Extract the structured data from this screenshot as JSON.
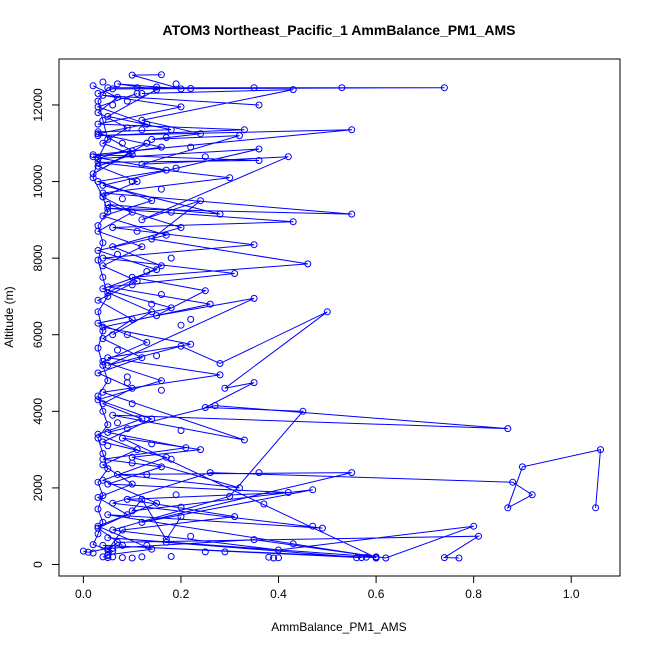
{
  "chart_data": {
    "type": "line",
    "title": "ATOM3 Northeast_Pacific_1 AmmBalance_PM1_AMS",
    "xlabel": "AmmBalance_PM1_AMS",
    "ylabel": "Altitude (m)",
    "xlim": [
      -0.05,
      1.1
    ],
    "ylim": [
      -300,
      13200
    ],
    "x_ticks": [
      0.0,
      0.2,
      0.4,
      0.6,
      0.8,
      1.0
    ],
    "x_tick_labels": [
      "0.0",
      "0.2",
      "0.4",
      "0.6",
      "0.8",
      "1.0"
    ],
    "y_ticks": [
      0,
      2000,
      4000,
      6000,
      8000,
      10000,
      12000
    ],
    "y_tick_labels": [
      "0",
      "2000",
      "4000",
      "6000",
      "8000",
      "10000",
      "12000"
    ],
    "grid": false,
    "color": "#0000ff",
    "marker": "open-circle",
    "series": [
      {
        "values": [
          [
            0.04,
            200
          ],
          [
            0.05,
            230
          ],
          [
            0.06,
            350
          ],
          [
            0.02,
            520
          ],
          [
            0.03,
            800
          ],
          [
            0.04,
            1100
          ],
          [
            0.03,
            1450
          ],
          [
            0.04,
            1800
          ],
          [
            0.03,
            2150
          ],
          [
            0.05,
            2500
          ],
          [
            0.04,
            2900
          ],
          [
            0.03,
            3300
          ],
          [
            0.05,
            3650
          ],
          [
            0.04,
            4000
          ],
          [
            0.03,
            4400
          ],
          [
            0.05,
            4800
          ],
          [
            0.04,
            5200
          ],
          [
            0.03,
            5650
          ],
          [
            0.04,
            6100
          ],
          [
            0.03,
            6600
          ],
          [
            0.05,
            7000
          ],
          [
            0.04,
            7500
          ],
          [
            0.03,
            7950
          ],
          [
            0.04,
            8400
          ],
          [
            0.03,
            8850
          ],
          [
            0.05,
            9200
          ],
          [
            0.04,
            9600
          ],
          [
            0.02,
            10100
          ],
          [
            0.03,
            10600
          ],
          [
            0.05,
            11100
          ],
          [
            0.04,
            11600
          ],
          [
            0.03,
            12100
          ],
          [
            0.05,
            12450
          ],
          [
            0.35,
            12450
          ],
          [
            0.53,
            12450
          ],
          [
            0.74,
            12450
          ],
          [
            0.06,
            12420
          ],
          [
            0.03,
            12300
          ]
        ]
      },
      {
        "values": [
          [
            0.77,
            170
          ],
          [
            0.74,
            180
          ],
          [
            0.81,
            740
          ],
          [
            0.07,
            580
          ],
          [
            0.05,
            380
          ],
          [
            0.08,
            900
          ],
          [
            0.31,
            1250
          ],
          [
            0.09,
            1700
          ],
          [
            0.42,
            1880
          ],
          [
            0.05,
            2100
          ],
          [
            0.16,
            2550
          ],
          [
            0.04,
            2750
          ],
          [
            0.21,
            3050
          ],
          [
            0.05,
            3450
          ],
          [
            0.27,
            4150
          ],
          [
            0.87,
            3550
          ],
          [
            0.06,
            3900
          ],
          [
            0.33,
            3250
          ],
          [
            0.04,
            4500
          ],
          [
            0.28,
            4950
          ],
          [
            0.05,
            5400
          ],
          [
            0.22,
            5750
          ],
          [
            0.04,
            6200
          ],
          [
            0.26,
            6800
          ],
          [
            0.05,
            7250
          ],
          [
            0.31,
            7600
          ],
          [
            0.04,
            8000
          ],
          [
            0.35,
            8350
          ],
          [
            0.06,
            8800
          ],
          [
            0.43,
            8950
          ],
          [
            0.05,
            9300
          ],
          [
            0.55,
            9150
          ],
          [
            0.04,
            9700
          ],
          [
            0.3,
            10100
          ],
          [
            0.03,
            10500
          ],
          [
            0.36,
            10550
          ],
          [
            0.02,
            10700
          ],
          [
            0.55,
            11350
          ],
          [
            0.03,
            11200
          ],
          [
            0.33,
            11350
          ],
          [
            0.03,
            11500
          ],
          [
            0.2,
            11950
          ],
          [
            0.04,
            12250
          ],
          [
            0.36,
            12000
          ]
        ]
      },
      {
        "values": [
          [
            1.05,
            1480
          ],
          [
            1.06,
            3000
          ],
          [
            0.9,
            2550
          ],
          [
            0.87,
            1480
          ],
          [
            0.92,
            1820
          ],
          [
            0.88,
            2150
          ],
          [
            0.26,
            2400
          ],
          [
            0.06,
            1600
          ],
          [
            0.49,
            950
          ],
          [
            0.05,
            1300
          ],
          [
            0.6,
            200
          ],
          [
            0.05,
            700
          ],
          [
            0.57,
            180
          ],
          [
            0.04,
            500
          ],
          [
            0.6,
            180
          ],
          [
            0.08,
            3300
          ],
          [
            0.24,
            3000
          ],
          [
            0.1,
            2800
          ],
          [
            0.32,
            2000
          ],
          [
            0.07,
            2350
          ],
          [
            0.55,
            2400
          ],
          [
            0.12,
            1100
          ],
          [
            0.47,
            1950
          ],
          [
            0.1,
            1400
          ],
          [
            0.12,
            1700
          ],
          [
            0.17,
            650
          ],
          [
            0.2,
            1250
          ]
        ]
      },
      {
        "values": [
          [
            0.06,
            6000
          ],
          [
            0.14,
            6600
          ],
          [
            0.05,
            7100
          ],
          [
            0.16,
            7800
          ],
          [
            0.06,
            8300
          ],
          [
            0.2,
            8800
          ],
          [
            0.05,
            9400
          ],
          [
            0.28,
            9150
          ],
          [
            0.04,
            9900
          ],
          [
            0.36,
            10850
          ],
          [
            0.03,
            10600
          ],
          [
            0.13,
            11000
          ],
          [
            0.02,
            10200
          ],
          [
            0.1,
            10800
          ],
          [
            0.03,
            11300
          ],
          [
            0.18,
            11350
          ],
          [
            0.05,
            11700
          ],
          [
            0.15,
            12400
          ],
          [
            0.07,
            12550
          ],
          [
            0.2,
            12420
          ],
          [
            0.1,
            12780
          ],
          [
            0.16,
            12790
          ]
        ]
      },
      {
        "values": [
          [
            0.08,
            500
          ],
          [
            0.03,
            950
          ],
          [
            0.09,
            1300
          ],
          [
            0.03,
            1750
          ],
          [
            0.1,
            2100
          ],
          [
            0.04,
            2600
          ],
          [
            0.11,
            3000
          ],
          [
            0.03,
            3400
          ],
          [
            0.12,
            3800
          ],
          [
            0.04,
            4200
          ],
          [
            0.1,
            4600
          ],
          [
            0.03,
            5000
          ],
          [
            0.12,
            5400
          ],
          [
            0.04,
            5900
          ],
          [
            0.1,
            6400
          ],
          [
            0.03,
            6900
          ],
          [
            0.11,
            7400
          ],
          [
            0.04,
            7800
          ],
          [
            0.12,
            8300
          ],
          [
            0.03,
            8700
          ],
          [
            0.1,
            9200
          ],
          [
            0.04,
            9600
          ],
          [
            0.11,
            10000
          ],
          [
            0.03,
            10400
          ],
          [
            0.1,
            10700
          ],
          [
            0.04,
            11000
          ],
          [
            0.09,
            11400
          ],
          [
            0.03,
            11800
          ],
          [
            0.07,
            12200
          ],
          [
            0.02,
            12500
          ]
        ]
      },
      {
        "values": [
          [
            0.0,
            350
          ],
          [
            0.01,
            320
          ],
          [
            0.05,
            420
          ],
          [
            0.35,
            650
          ],
          [
            0.62,
            170
          ],
          [
            0.8,
            1000
          ],
          [
            0.4,
            380
          ],
          [
            0.06,
            900
          ],
          [
            0.3,
            1780
          ],
          [
            0.45,
            4000
          ],
          [
            0.25,
            4100
          ],
          [
            0.35,
            4750
          ],
          [
            0.29,
            4600
          ],
          [
            0.5,
            6600
          ],
          [
            0.28,
            5250
          ],
          [
            0.2,
            5700
          ],
          [
            0.05,
            5200
          ],
          [
            0.35,
            6950
          ],
          [
            0.15,
            6500
          ],
          [
            0.25,
            7150
          ],
          [
            0.1,
            7500
          ],
          [
            0.46,
            7850
          ],
          [
            0.14,
            8500
          ],
          [
            0.24,
            9500
          ],
          [
            0.12,
            9000
          ],
          [
            0.42,
            10650
          ],
          [
            0.12,
            10450
          ],
          [
            0.32,
            11200
          ],
          [
            0.14,
            11100
          ],
          [
            0.24,
            11250
          ],
          [
            0.12,
            11600
          ],
          [
            0.43,
            12400
          ],
          [
            0.12,
            12300
          ]
        ]
      },
      {
        "values": [
          [
            0.05,
            250
          ],
          [
            0.14,
            400
          ],
          [
            0.03,
            1000
          ],
          [
            0.15,
            1600
          ],
          [
            0.04,
            2200
          ],
          [
            0.17,
            2800
          ],
          [
            0.04,
            3200
          ],
          [
            0.14,
            3800
          ],
          [
            0.03,
            4300
          ],
          [
            0.16,
            4800
          ],
          [
            0.04,
            5300
          ],
          [
            0.13,
            5800
          ],
          [
            0.03,
            6300
          ],
          [
            0.18,
            6700
          ],
          [
            0.04,
            7200
          ],
          [
            0.15,
            7700
          ],
          [
            0.03,
            8200
          ],
          [
            0.17,
            8600
          ],
          [
            0.04,
            9100
          ],
          [
            0.14,
            9500
          ],
          [
            0.03,
            10000
          ],
          [
            0.17,
            10300
          ],
          [
            0.02,
            10650
          ],
          [
            0.16,
            10900
          ],
          [
            0.03,
            11250
          ],
          [
            0.13,
            11500
          ],
          [
            0.03,
            11950
          ],
          [
            0.11,
            12300
          ]
        ]
      }
    ],
    "scatter_points": [
      [
        0.05,
        180
      ],
      [
        0.06,
        200
      ],
      [
        0.08,
        180
      ],
      [
        0.1,
        170
      ],
      [
        0.12,
        200
      ],
      [
        0.18,
        210
      ],
      [
        0.25,
        330
      ],
      [
        0.29,
        330
      ],
      [
        0.38,
        190
      ],
      [
        0.39,
        170
      ],
      [
        0.4,
        175
      ],
      [
        0.56,
        175
      ],
      [
        0.58,
        190
      ],
      [
        0.6,
        170
      ],
      [
        0.02,
        300
      ],
      [
        0.06,
        420
      ],
      [
        0.13,
        500
      ],
      [
        0.17,
        580
      ],
      [
        0.22,
        740
      ],
      [
        0.43,
        540
      ],
      [
        0.47,
        1000
      ],
      [
        0.2,
        1500
      ],
      [
        0.37,
        1580
      ],
      [
        0.19,
        1820
      ],
      [
        0.13,
        2350
      ],
      [
        0.18,
        2750
      ],
      [
        0.36,
        2400
      ],
      [
        0.09,
        3550
      ],
      [
        0.05,
        3100
      ],
      [
        0.14,
        3150
      ],
      [
        0.2,
        3500
      ],
      [
        0.1,
        4200
      ],
      [
        0.16,
        4550
      ],
      [
        0.09,
        4900
      ],
      [
        0.15,
        5450
      ],
      [
        0.09,
        6000
      ],
      [
        0.2,
        6250
      ],
      [
        0.16,
        7050
      ],
      [
        0.22,
        6400
      ],
      [
        0.13,
        7650
      ],
      [
        0.18,
        8000
      ],
      [
        0.11,
        8700
      ],
      [
        0.08,
        9550
      ],
      [
        0.16,
        9800
      ],
      [
        0.19,
        10350
      ],
      [
        0.1,
        10000
      ],
      [
        0.25,
        10650
      ],
      [
        0.13,
        11000
      ],
      [
        0.06,
        12000
      ],
      [
        0.09,
        12100
      ],
      [
        0.04,
        12600
      ],
      [
        0.11,
        12450
      ],
      [
        0.15,
        12470
      ],
      [
        0.19,
        12550
      ],
      [
        0.22,
        12430
      ],
      [
        0.08,
        11000
      ],
      [
        0.12,
        11350
      ],
      [
        0.17,
        11150
      ],
      [
        0.22,
        10900
      ],
      [
        0.18,
        9200
      ],
      [
        0.07,
        8100
      ],
      [
        0.1,
        7300
      ],
      [
        0.14,
        6800
      ],
      [
        0.07,
        5600
      ],
      [
        0.09,
        4750
      ],
      [
        0.07,
        3700
      ],
      [
        0.1,
        2650
      ]
    ]
  }
}
